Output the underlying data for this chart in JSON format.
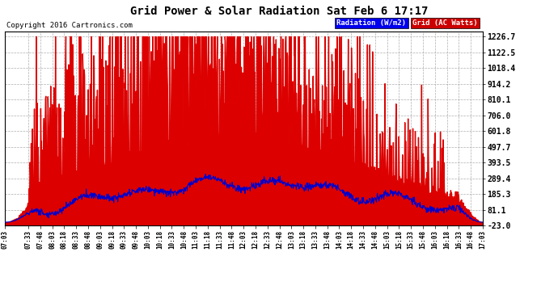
{
  "title": "Grid Power & Solar Radiation Sat Feb 6 17:17",
  "copyright": "Copyright 2016 Cartronics.com",
  "legend_labels": [
    "Radiation (W/m2)",
    "Grid (AC Watts)"
  ],
  "legend_colors": [
    "#0000ee",
    "#cc0000"
  ],
  "ymin": -23.0,
  "ymax": 1226.7,
  "yticks": [
    1226.7,
    1122.5,
    1018.4,
    914.2,
    810.1,
    706.0,
    601.8,
    497.7,
    393.5,
    289.4,
    185.3,
    81.1,
    -23.0
  ],
  "background_color": "#ffffff",
  "plot_bg_color": "#ffffff",
  "grid_color": "#999999",
  "red_fill_color": "#dd0000",
  "blue_line_color": "#0000cc",
  "xtick_labels": [
    "07:03",
    "07:33",
    "07:48",
    "08:03",
    "08:18",
    "08:33",
    "08:48",
    "09:03",
    "09:18",
    "09:33",
    "09:48",
    "10:03",
    "10:18",
    "10:33",
    "10:48",
    "11:03",
    "11:18",
    "11:33",
    "11:48",
    "12:03",
    "12:18",
    "12:33",
    "12:48",
    "13:03",
    "13:18",
    "13:33",
    "13:48",
    "14:03",
    "14:18",
    "14:33",
    "14:48",
    "15:03",
    "15:18",
    "15:33",
    "15:48",
    "16:03",
    "16:18",
    "16:33",
    "16:48",
    "17:03"
  ]
}
